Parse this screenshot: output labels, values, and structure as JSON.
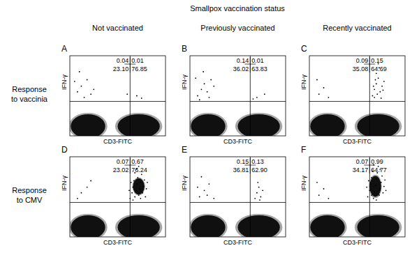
{
  "header": {
    "title": "Smallpox vaccination status",
    "columns": [
      "Not vaccinated",
      "Previously vaccinated",
      "Recently vaccinated"
    ],
    "rows": [
      "Response to vaccinia",
      "Response to CMV"
    ]
  },
  "chart_data": [
    {
      "type": "scatter",
      "panel": "A",
      "x_label": "CD3-FITC",
      "y_label": "IFN-γ",
      "xlim": [
        0,
        100
      ],
      "ylim": [
        0,
        100
      ],
      "tick_labels": false,
      "color": "#000000",
      "gate": {
        "x": 63,
        "y": 43
      },
      "quadrants": [
        0.04,
        0.01,
        {
          "value": 23.1,
          "label": "23.10"
        },
        76.85
      ],
      "clusters": [
        {
          "x": 19,
          "y": 12,
          "rx": 18,
          "ry": 15
        },
        {
          "x": 72,
          "y": 12,
          "rx": 22,
          "ry": 15
        }
      ],
      "x": [
        8,
        12,
        15,
        18,
        10,
        22,
        70,
        75,
        5,
        25,
        60
      ],
      "values": [
        55,
        62,
        48,
        70,
        80,
        52,
        50,
        47,
        68,
        58,
        52
      ]
    },
    {
      "type": "scatter",
      "panel": "B",
      "x_label": "CD3-FITC",
      "y_label": "IFN-γ",
      "xlim": [
        0,
        100
      ],
      "ylim": [
        0,
        100
      ],
      "tick_labels": false,
      "color": "#000000",
      "gate": {
        "x": 63,
        "y": 43
      },
      "quadrants": [
        0.14,
        0.01,
        36.02,
        63.83
      ],
      "clusters": [
        {
          "x": 19,
          "y": 12,
          "rx": 18,
          "ry": 15
        },
        {
          "x": 72,
          "y": 12,
          "rx": 22,
          "ry": 15
        }
      ],
      "x": [
        8,
        12,
        15,
        20,
        6,
        18,
        25,
        10,
        14,
        70,
        78,
        66,
        22
      ],
      "values": [
        50,
        58,
        65,
        48,
        72,
        55,
        62,
        45,
        80,
        48,
        52,
        46,
        70
      ]
    },
    {
      "type": "scatter",
      "panel": "C",
      "x_label": "CD3-FITC",
      "y_label": "IFN-γ",
      "xlim": [
        0,
        100
      ],
      "ylim": [
        0,
        100
      ],
      "tick_labels": false,
      "color": "#000000",
      "gate": {
        "x": 63,
        "y": 43
      },
      "quadrants": [
        0.09,
        0.15,
        35.08,
        64.69
      ],
      "clusters": [
        {
          "x": 19,
          "y": 12,
          "rx": 18,
          "ry": 15
        },
        {
          "x": 72,
          "y": 12,
          "rx": 22,
          "ry": 15
        }
      ],
      "x": [
        66,
        68,
        70,
        72,
        74,
        76,
        70,
        68,
        73,
        78,
        71,
        75,
        69,
        67,
        77,
        72,
        10,
        15,
        8,
        20
      ],
      "values": [
        50,
        58,
        65,
        72,
        55,
        62,
        78,
        48,
        85,
        68,
        52,
        47,
        70,
        62,
        57,
        90,
        52,
        60,
        70,
        48
      ]
    },
    {
      "type": "scatter",
      "panel": "D",
      "x_label": "CD3-FITC",
      "y_label": "IFN-γ",
      "xlim": [
        0,
        100
      ],
      "ylim": [
        0,
        100
      ],
      "tick_labels": false,
      "color": "#000000",
      "gate": {
        "x": 63,
        "y": 43
      },
      "quadrants": [
        0.07,
        0.67,
        23.02,
        76.24
      ],
      "clusters": [
        {
          "x": 19,
          "y": 12,
          "rx": 18,
          "ry": 15
        },
        {
          "x": 72,
          "y": 12,
          "rx": 22,
          "ry": 15
        },
        {
          "x": 72,
          "y": 63,
          "rx": 6,
          "ry": 10
        }
      ],
      "x": [
        63,
        65,
        66,
        67,
        68,
        69,
        70,
        71,
        72,
        73,
        74,
        75,
        76,
        77,
        78,
        79,
        80,
        68,
        70,
        64,
        66,
        74,
        72,
        62,
        81,
        12,
        18,
        8,
        22
      ],
      "values": [
        48,
        55,
        62,
        70,
        50,
        58,
        66,
        74,
        52,
        60,
        68,
        78,
        55,
        63,
        71,
        50,
        60,
        80,
        85,
        68,
        46,
        48,
        88,
        58,
        68,
        55,
        62,
        48,
        70
      ]
    },
    {
      "type": "scatter",
      "panel": "E",
      "x_label": "CD3-FITC",
      "y_label": "IFN-γ",
      "xlim": [
        0,
        100
      ],
      "ylim": [
        0,
        100
      ],
      "tick_labels": false,
      "color": "#000000",
      "gate": {
        "x": 63,
        "y": 43
      },
      "quadrants": [
        0.15,
        0.13,
        36.81,
        {
          "value": 62.9,
          "label": "62.90"
        }
      ],
      "clusters": [
        {
          "x": 19,
          "y": 12,
          "rx": 18,
          "ry": 15
        },
        {
          "x": 72,
          "y": 12,
          "rx": 22,
          "ry": 15
        }
      ],
      "x": [
        68,
        70,
        72,
        74,
        76,
        71,
        73,
        10,
        15,
        20,
        8,
        25,
        12,
        18
      ],
      "values": [
        48,
        55,
        62,
        50,
        58,
        68,
        46,
        50,
        58,
        66,
        62,
        48,
        75,
        52
      ]
    },
    {
      "type": "scatter",
      "panel": "F",
      "x_label": "CD3-FITC",
      "y_label": "IFN-γ",
      "xlim": [
        0,
        100
      ],
      "ylim": [
        0,
        100
      ],
      "tick_labels": false,
      "color": "#000000",
      "gate": {
        "x": 63,
        "y": 43
      },
      "quadrants": [
        0.07,
        0.99,
        34.17,
        64.77
      ],
      "clusters": [
        {
          "x": 19,
          "y": 12,
          "rx": 18,
          "ry": 15
        },
        {
          "x": 72,
          "y": 12,
          "rx": 22,
          "ry": 15
        },
        {
          "x": 69,
          "y": 63,
          "rx": 6,
          "ry": 13
        }
      ],
      "x": [
        61,
        63,
        64,
        65,
        66,
        67,
        68,
        69,
        70,
        71,
        72,
        73,
        74,
        75,
        76,
        77,
        78,
        79,
        62,
        60,
        67,
        70,
        80,
        65,
        74,
        10,
        15,
        20,
        8
      ],
      "values": [
        50,
        58,
        66,
        74,
        82,
        48,
        56,
        64,
        72,
        80,
        88,
        52,
        60,
        68,
        76,
        55,
        63,
        71,
        70,
        62,
        90,
        46,
        58,
        52,
        84,
        52,
        60,
        48,
        68
      ]
    }
  ]
}
